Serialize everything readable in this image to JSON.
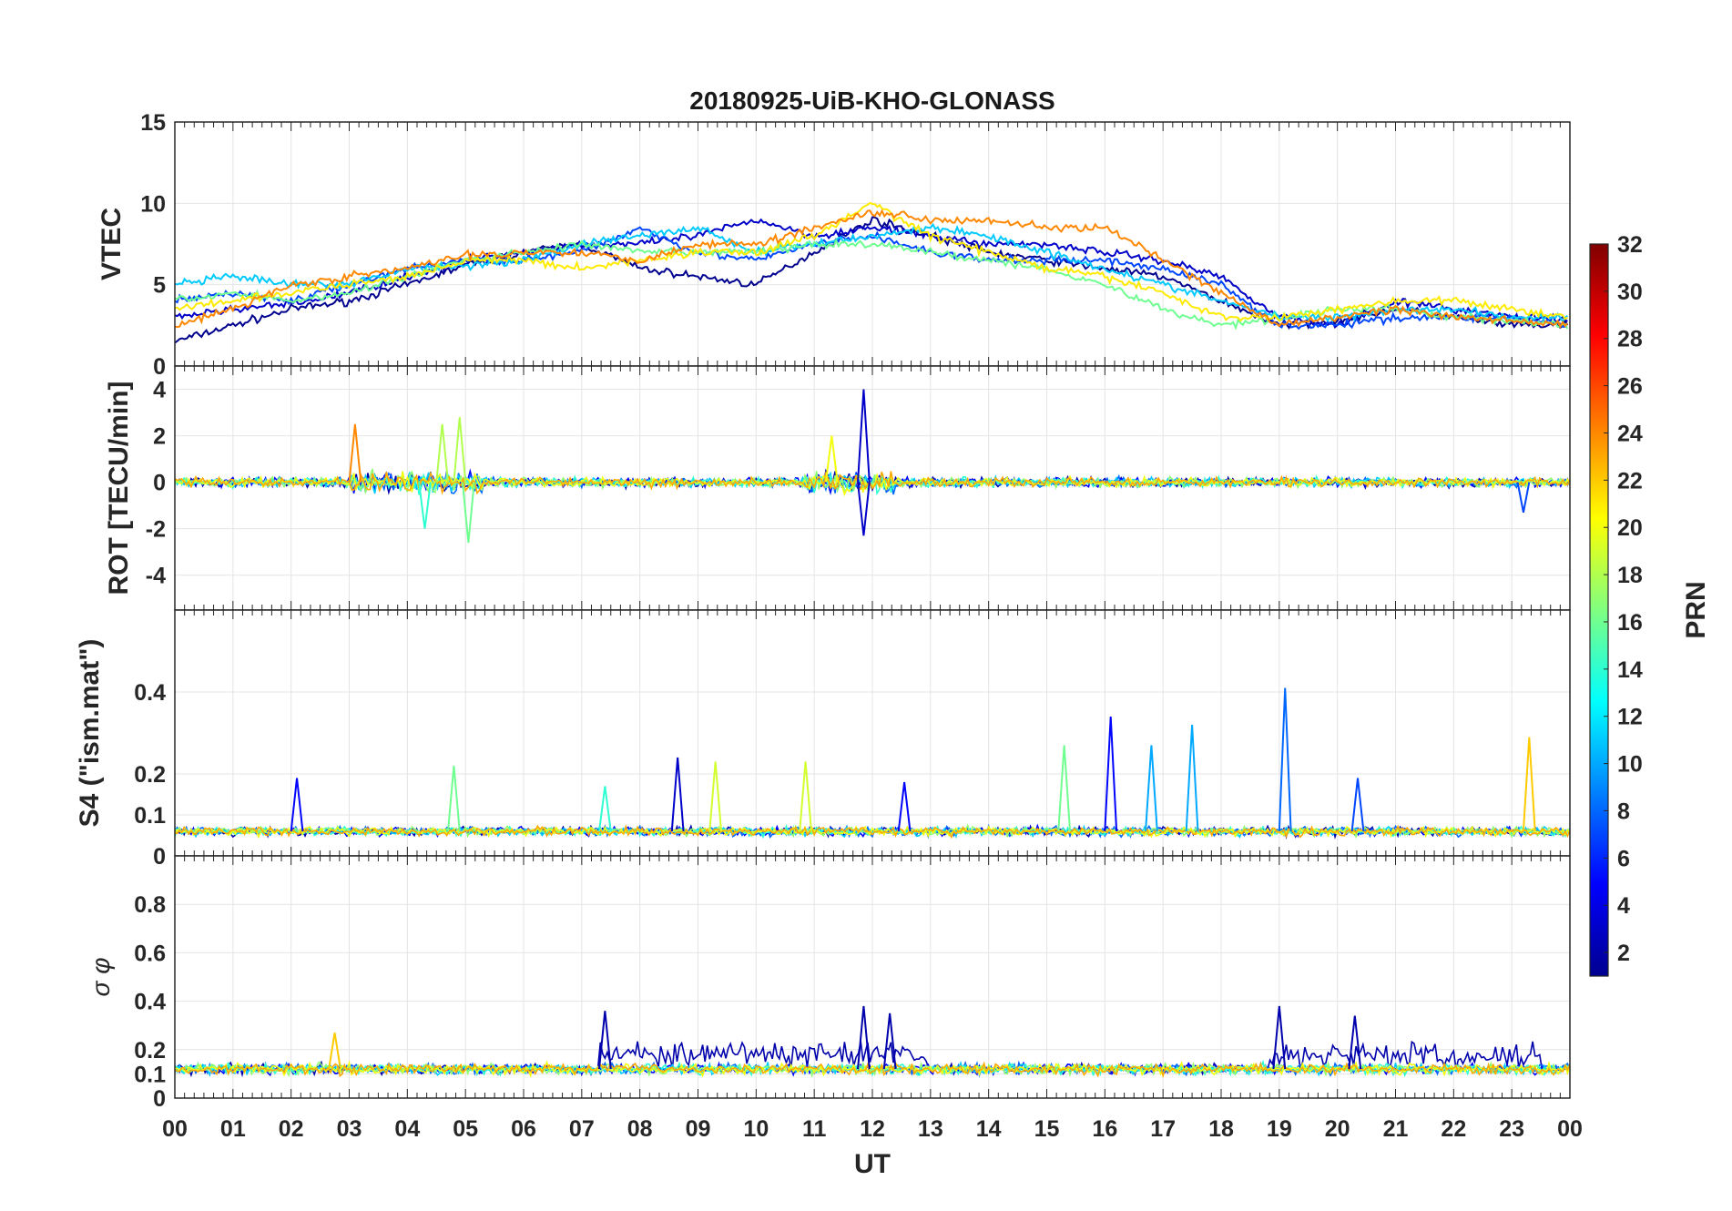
{
  "chart_data": {
    "type": "line",
    "title": "20180925-UiB-KHO-GLONASS",
    "xlabel": "UT",
    "x_tick_labels": [
      "00",
      "01",
      "02",
      "03",
      "04",
      "05",
      "06",
      "07",
      "08",
      "09",
      "10",
      "11",
      "12",
      "13",
      "14",
      "15",
      "16",
      "17",
      "18",
      "19",
      "20",
      "21",
      "22",
      "23",
      "00"
    ],
    "xlim": [
      0,
      24
    ],
    "grid": true,
    "colorbar": {
      "label": "PRN",
      "colormap": "jet",
      "range": [
        1,
        32
      ],
      "ticks": [
        "2",
        "4",
        "6",
        "8",
        "10",
        "12",
        "14",
        "16",
        "18",
        "20",
        "22",
        "24",
        "26",
        "28",
        "30",
        "32"
      ],
      "colors": [
        "#00008f",
        "#0000ff",
        "#0080ff",
        "#00ffff",
        "#80ff80",
        "#ffff00",
        "#ff8000",
        "#ff0000",
        "#800000"
      ]
    },
    "panels": [
      {
        "ylabel": "VTEC",
        "ylim": [
          0,
          15
        ],
        "y_ticks": [
          "0",
          "5",
          "10",
          "15"
        ],
        "series": [
          {
            "prn": 1,
            "x": [
              0,
              1,
              2,
              3,
              4,
              5,
              6,
              7,
              8,
              9,
              10,
              11,
              12,
              13,
              14,
              15,
              16,
              17,
              18,
              19,
              20,
              21,
              22,
              23,
              24
            ],
            "values": [
              1.5,
              2.5,
              3.5,
              4,
              5,
              6.2,
              7,
              7.5,
              6,
              5.5,
              5,
              7,
              9,
              8,
              7,
              6.5,
              6,
              5.5,
              4,
              2.5,
              2.8,
              3.5,
              3,
              2.5,
              2.5
            ]
          },
          {
            "prn": 3,
            "x": [
              0,
              1,
              2,
              3,
              4,
              5,
              6,
              7,
              8,
              9,
              10,
              11,
              12,
              13,
              14,
              15,
              16,
              17,
              18,
              19,
              20,
              21,
              22,
              23,
              24
            ],
            "values": [
              3,
              3.5,
              3.8,
              4.5,
              5.5,
              6.5,
              7,
              7.5,
              7.5,
              8,
              9,
              8,
              8.5,
              8,
              7.5,
              7.5,
              7,
              6.5,
              5.5,
              3,
              2.5,
              4,
              3.5,
              3,
              2.8
            ]
          },
          {
            "prn": 7,
            "x": [
              0,
              1,
              2,
              3,
              4,
              5,
              6,
              7,
              8,
              9,
              10,
              11,
              12,
              13,
              14,
              15,
              16,
              17,
              18,
              19,
              20,
              21,
              22,
              23,
              24
            ],
            "values": [
              4,
              4.5,
              4,
              5,
              6,
              6.5,
              6.5,
              7,
              8.5,
              7,
              6.5,
              7.5,
              8,
              7,
              6.5,
              6.5,
              6.5,
              6,
              5,
              2.5,
              2.5,
              3,
              3,
              3,
              2.5
            ]
          },
          {
            "prn": 11,
            "x": [
              0,
              1,
              2,
              3,
              4,
              5,
              6,
              7,
              8,
              9,
              10,
              11,
              12,
              13,
              14,
              15,
              16,
              17,
              18,
              19,
              20,
              21,
              22,
              23,
              24
            ],
            "values": [
              5,
              5.5,
              5,
              5,
              6,
              6.2,
              6.5,
              7.5,
              8,
              8.5,
              7,
              7.5,
              8,
              8.5,
              8,
              7,
              6,
              5,
              4,
              3,
              3,
              3.5,
              3.5,
              3,
              3
            ]
          },
          {
            "prn": 16,
            "x": [
              0,
              1,
              2,
              3,
              4,
              5,
              6,
              7,
              8,
              9,
              10,
              11,
              12,
              13,
              14,
              15,
              16,
              17,
              18,
              19,
              20,
              21,
              22,
              23,
              24
            ],
            "values": [
              4,
              4.5,
              4,
              4.5,
              5.5,
              6.5,
              7,
              7.5,
              7,
              7,
              7,
              7.5,
              7.5,
              7,
              6.5,
              6,
              5,
              3.5,
              2.5,
              3,
              3.5,
              3.5,
              3,
              2.8,
              2.5
            ]
          },
          {
            "prn": 21,
            "x": [
              0,
              1,
              2,
              3,
              4,
              5,
              6,
              7,
              8,
              9,
              10,
              11,
              12,
              13,
              14,
              15,
              16,
              17,
              18,
              19,
              20,
              21,
              22,
              23,
              24
            ],
            "values": [
              3.5,
              4,
              4.5,
              5,
              5.5,
              6.5,
              6.5,
              6,
              6.5,
              7,
              7,
              8,
              10,
              8,
              7,
              6,
              5.5,
              4.5,
              3,
              3,
              3.5,
              4,
              4,
              3.5,
              3
            ]
          },
          {
            "prn": 24,
            "x": [
              0,
              1,
              2,
              3,
              4,
              5,
              6,
              7,
              8,
              9,
              10,
              11,
              12,
              13,
              14,
              15,
              16,
              17,
              18,
              19,
              20,
              21,
              22,
              23,
              24
            ],
            "values": [
              2.5,
              3.5,
              5,
              5.5,
              6,
              6.8,
              7,
              7,
              6.5,
              7.5,
              7.5,
              8.5,
              9.5,
              9,
              9,
              8.5,
              8.5,
              6.5,
              4.5,
              2.5,
              3,
              3.5,
              3,
              2.8,
              2.5
            ]
          }
        ]
      },
      {
        "ylabel": "ROT [TECU/min]",
        "ylim": [
          -5.5,
          5
        ],
        "y_ticks": [
          "-4",
          "-2",
          "0",
          "2",
          "4"
        ],
        "series_note": "noisy ROT traces centered at 0, largest excursions near 03-05 UT and 11-12 UT",
        "spikes": [
          {
            "x": 3.1,
            "value": 2.5,
            "prn": 24
          },
          {
            "x": 4.6,
            "value": 2.5,
            "prn": 18
          },
          {
            "x": 4.9,
            "value": 2.8,
            "prn": 18
          },
          {
            "x": 5.05,
            "value": -2.6,
            "prn": 16
          },
          {
            "x": 4.3,
            "value": -2.0,
            "prn": 14
          },
          {
            "x": 11.85,
            "value": 4.0,
            "prn": 3
          },
          {
            "x": 11.85,
            "value": -2.3,
            "prn": 3
          },
          {
            "x": 11.3,
            "value": 2.0,
            "prn": 20
          },
          {
            "x": 23.2,
            "value": -1.3,
            "prn": 7
          }
        ]
      },
      {
        "ylabel": "S4 (\"ism.mat\")",
        "ylim": [
          0,
          0.6
        ],
        "y_ticks": [
          "0",
          "0.1",
          "0.2",
          "0.4"
        ],
        "spikes": [
          {
            "x": 2.1,
            "value": 0.19,
            "prn": 5
          },
          {
            "x": 4.8,
            "value": 0.22,
            "prn": 16
          },
          {
            "x": 7.4,
            "value": 0.17,
            "prn": 14
          },
          {
            "x": 8.65,
            "value": 0.24,
            "prn": 3
          },
          {
            "x": 9.3,
            "value": 0.23,
            "prn": 19
          },
          {
            "x": 10.85,
            "value": 0.23,
            "prn": 19
          },
          {
            "x": 12.55,
            "value": 0.18,
            "prn": 5
          },
          {
            "x": 15.3,
            "value": 0.27,
            "prn": 16
          },
          {
            "x": 16.1,
            "value": 0.34,
            "prn": 5
          },
          {
            "x": 16.8,
            "value": 0.27,
            "prn": 10
          },
          {
            "x": 17.5,
            "value": 0.32,
            "prn": 10
          },
          {
            "x": 19.1,
            "value": 0.41,
            "prn": 8
          },
          {
            "x": 20.35,
            "value": 0.19,
            "prn": 7
          },
          {
            "x": 23.3,
            "value": 0.29,
            "prn": 22
          }
        ]
      },
      {
        "ylabel": "σ φ",
        "ylim": [
          0,
          1
        ],
        "y_ticks": [
          "0",
          "0.1",
          "0.2",
          "0.4",
          "0.6",
          "0.8"
        ],
        "spikes": [
          {
            "x": 2.75,
            "value": 0.27,
            "prn": 22
          },
          {
            "x": 7.4,
            "value": 0.36,
            "prn": 2
          },
          {
            "x": 11.85,
            "value": 0.38,
            "prn": 2
          },
          {
            "x": 12.3,
            "value": 0.35,
            "prn": 2
          },
          {
            "x": 19.0,
            "value": 0.38,
            "prn": 2
          },
          {
            "x": 20.3,
            "value": 0.34,
            "prn": 2
          }
        ]
      }
    ]
  }
}
